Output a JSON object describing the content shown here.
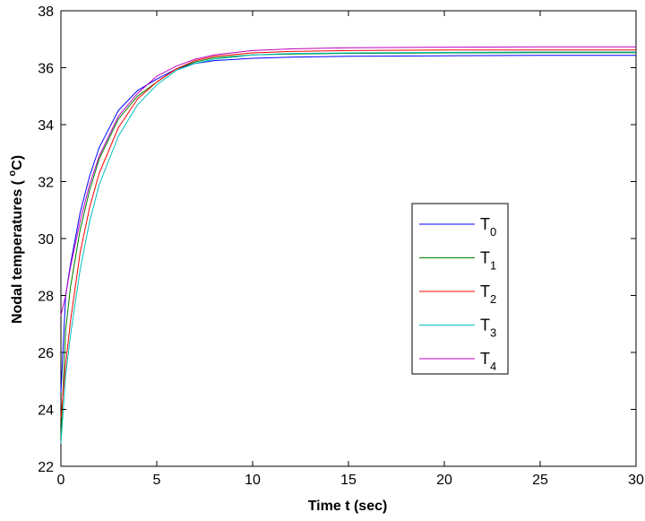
{
  "chart_data": {
    "type": "line",
    "xlabel": "Time t (sec)",
    "ylabel_parts": {
      "before": "Nodal temperatures ( ",
      "superscript": "o",
      "after": "C)"
    },
    "xlim": [
      0,
      30
    ],
    "ylim": [
      22,
      38
    ],
    "x_ticks": [
      "0",
      "5",
      "10",
      "15",
      "20",
      "25",
      "30"
    ],
    "y_ticks": [
      "22",
      "24",
      "26",
      "28",
      "30",
      "32",
      "34",
      "36",
      "38"
    ],
    "grid": false,
    "legend_position": "right-middle",
    "series": [
      {
        "name": "T0",
        "base": "T",
        "subscript": "0",
        "color": "#0000ff",
        "x": [
          0,
          0.25,
          0.5,
          1,
          1.5,
          2,
          3,
          4,
          5,
          6,
          7,
          8,
          10,
          12,
          15,
          20,
          25,
          30
        ],
        "y": [
          24.6,
          28.0,
          29.1,
          30.9,
          32.2,
          33.2,
          34.5,
          35.2,
          35.6,
          35.95,
          36.15,
          36.25,
          36.33,
          36.37,
          36.4,
          36.42,
          36.43,
          36.43
        ]
      },
      {
        "name": "T1",
        "base": "T",
        "subscript": "1",
        "color": "#008000",
        "x": [
          0,
          0.25,
          0.5,
          1,
          1.5,
          2,
          3,
          4,
          5,
          6,
          7,
          8,
          10,
          12,
          15,
          20,
          25,
          30
        ],
        "y": [
          23.0,
          26.8,
          28.3,
          30.3,
          31.7,
          32.8,
          34.2,
          35.0,
          35.5,
          35.95,
          36.2,
          36.35,
          36.45,
          36.48,
          36.5,
          36.52,
          36.53,
          36.53
        ]
      },
      {
        "name": "T2",
        "base": "T",
        "subscript": "2",
        "color": "#ff0000",
        "x": [
          0,
          0.25,
          0.5,
          1,
          1.5,
          2,
          3,
          4,
          5,
          6,
          7,
          8,
          10,
          12,
          15,
          20,
          25,
          30
        ],
        "y": [
          23.7,
          25.6,
          27.1,
          29.5,
          31.1,
          32.3,
          33.9,
          34.9,
          35.5,
          35.95,
          36.25,
          36.4,
          36.52,
          36.57,
          36.6,
          36.62,
          36.62,
          36.62
        ]
      },
      {
        "name": "T3",
        "base": "T",
        "subscript": "3",
        "color": "#00c0c0",
        "x": [
          0,
          0.25,
          0.5,
          1,
          1.5,
          2,
          3,
          4,
          5,
          6,
          7,
          8,
          10,
          12,
          15,
          20,
          25,
          30
        ],
        "y": [
          22.8,
          25.2,
          26.6,
          28.9,
          30.6,
          31.9,
          33.6,
          34.7,
          35.4,
          35.9,
          36.15,
          36.3,
          36.45,
          36.5,
          36.52,
          36.54,
          36.55,
          36.55
        ]
      },
      {
        "name": "T4",
        "base": "T",
        "subscript": "4",
        "color": "#c000c0",
        "x": [
          0,
          0.25,
          0.5,
          1,
          1.5,
          2,
          3,
          4,
          5,
          6,
          7,
          8,
          10,
          12,
          15,
          20,
          25,
          30
        ],
        "y": [
          27.3,
          28.0,
          29.0,
          30.6,
          31.9,
          32.9,
          34.3,
          35.1,
          35.7,
          36.05,
          36.3,
          36.45,
          36.6,
          36.66,
          36.7,
          36.72,
          36.73,
          36.73
        ]
      }
    ]
  }
}
